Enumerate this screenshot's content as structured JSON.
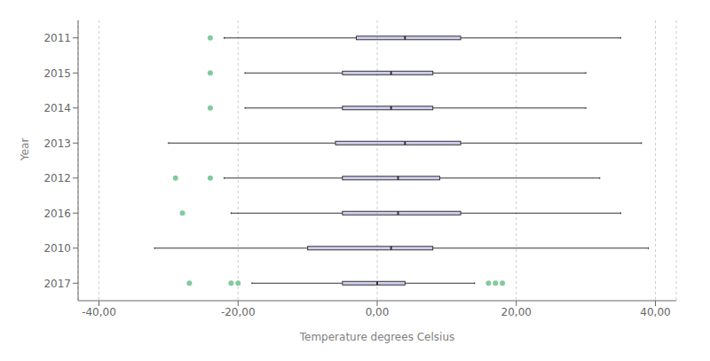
{
  "chart_data": {
    "type": "box",
    "categories": [
      "2011",
      "2015",
      "2014",
      "2013",
      "2012",
      "2016",
      "2010",
      "2017"
    ],
    "boxes": [
      {
        "whislo": -22,
        "q1": -3,
        "med": 4,
        "q3": 12,
        "whishi": 35,
        "fliers": [
          -24
        ]
      },
      {
        "whislo": -19,
        "q1": -5,
        "med": 2,
        "q3": 8,
        "whishi": 30,
        "fliers": [
          -24
        ]
      },
      {
        "whislo": -19,
        "q1": -5,
        "med": 2,
        "q3": 8,
        "whishi": 30,
        "fliers": [
          -24
        ]
      },
      {
        "whislo": -30,
        "q1": -6,
        "med": 4,
        "q3": 12,
        "whishi": 38,
        "fliers": []
      },
      {
        "whislo": -22,
        "q1": -5,
        "med": 3,
        "q3": 9,
        "whishi": 32,
        "fliers": [
          -29,
          -24
        ]
      },
      {
        "whislo": -21,
        "q1": -5,
        "med": 3,
        "q3": 12,
        "whishi": 35,
        "fliers": [
          -28
        ]
      },
      {
        "whislo": -32,
        "q1": -10,
        "med": 2,
        "q3": 8,
        "whishi": 39,
        "fliers": []
      },
      {
        "whislo": -18,
        "q1": -5,
        "med": 0,
        "q3": 4,
        "whishi": 14,
        "fliers": [
          -27,
          -21,
          -20,
          16,
          17,
          18
        ]
      }
    ],
    "xlim": [
      -43,
      43
    ],
    "xticks": [
      {
        "value": -40,
        "label": "-40,00"
      },
      {
        "value": -20,
        "label": "-20,00"
      },
      {
        "value": 0,
        "label": "0,00"
      },
      {
        "value": 20,
        "label": "20,00"
      },
      {
        "value": 40,
        "label": "40,00"
      }
    ],
    "xlabel": "Temperature degrees Celsius",
    "ylabel": "Year",
    "grid": true
  }
}
